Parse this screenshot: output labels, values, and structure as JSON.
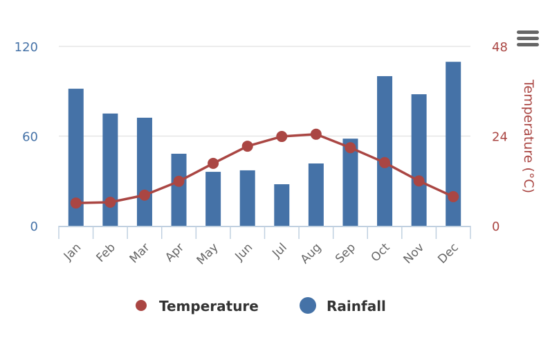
{
  "chart_data": {
    "type": "bar+line",
    "categories": [
      "Jan",
      "Feb",
      "Mar",
      "Apr",
      "May",
      "Jun",
      "Jul",
      "Aug",
      "Sep",
      "Oct",
      "Nov",
      "Dec"
    ],
    "series": [
      {
        "name": "Rainfall",
        "type": "bar",
        "axis": "left",
        "color": "#4572a7",
        "values": [
          91.7,
          75.1,
          72.3,
          48.2,
          36.1,
          37.1,
          27.8,
          41.7,
          58.3,
          100.1,
          88.0,
          109.7
        ]
      },
      {
        "name": "Temperature",
        "type": "line",
        "axis": "right",
        "color": "#aa4643",
        "values": [
          6.1,
          6.3,
          8.2,
          11.9,
          16.7,
          21.3,
          23.9,
          24.5,
          20.9,
          16.9,
          12.0,
          7.8
        ]
      }
    ],
    "y_left": {
      "ticks": [
        "0",
        "60",
        "120"
      ],
      "range": [
        0,
        120
      ],
      "title": ""
    },
    "y_right": {
      "ticks": [
        "0",
        "24",
        "48"
      ],
      "range": [
        0,
        48
      ],
      "title": "Temperature (°C)"
    },
    "grid": true,
    "legend": {
      "position": "bottom",
      "items": [
        "Temperature",
        "Rainfall"
      ]
    },
    "menu_icon": "hamburger-menu-icon"
  }
}
